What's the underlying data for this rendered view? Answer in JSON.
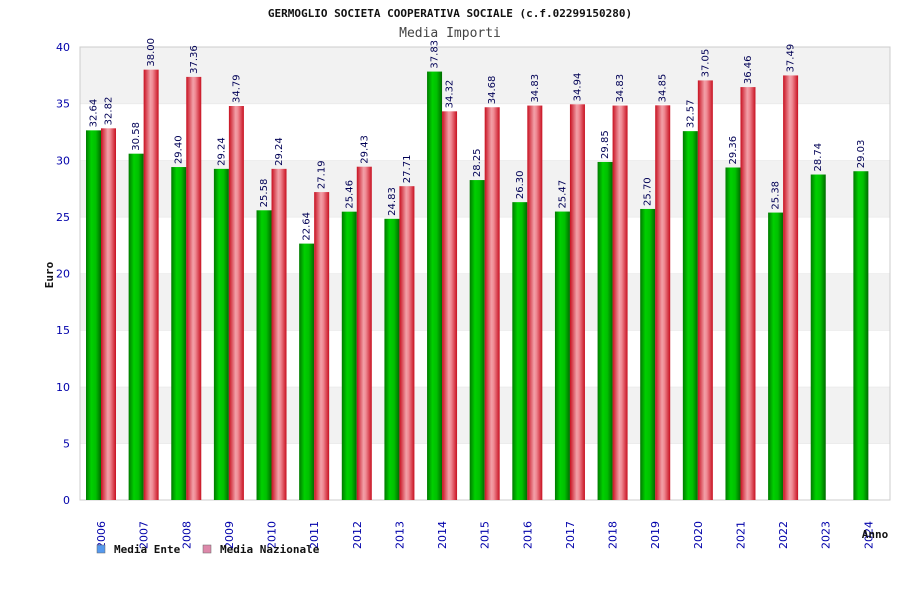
{
  "chart_data": {
    "type": "bar",
    "title": "GERMOGLIO SOCIETA COOPERATIVA SOCIALE (c.f.02299150280)",
    "subtitle": "Media Importi",
    "xlabel": "Anno",
    "ylabel": "Euro",
    "ylim": [
      0,
      40
    ],
    "yticks": [
      0,
      5,
      10,
      15,
      20,
      25,
      30,
      35,
      40
    ],
    "grid": true,
    "legend_position": "bottom-left",
    "categories": [
      "2006",
      "2007",
      "2008",
      "2009",
      "2010",
      "2011",
      "2012",
      "2013",
      "2014",
      "2015",
      "2016",
      "2017",
      "2018",
      "2019",
      "2020",
      "2021",
      "2022",
      "2023",
      "2024"
    ],
    "series": [
      {
        "name": "Media Ente",
        "color": "#00aa00",
        "legend_color": "#5599ee",
        "values": [
          32.64,
          30.58,
          29.4,
          29.24,
          25.58,
          22.64,
          25.46,
          24.83,
          37.83,
          28.25,
          26.3,
          25.47,
          29.85,
          25.7,
          32.57,
          29.36,
          25.38,
          28.74,
          29.03
        ],
        "labels": [
          "32.64",
          "30.58",
          "29.40",
          "29.24",
          "25.58",
          "22.64",
          "25.46",
          "24.83",
          "37.83",
          "28.25",
          "26.30",
          "25.47",
          "29.85",
          "25.70",
          "32.57",
          "29.36",
          "25.38",
          "28.74",
          "29.03"
        ]
      },
      {
        "name": "Media Nazionale",
        "color": "#ee2222",
        "legend_color": "#dd88aa",
        "values": [
          32.82,
          38.0,
          37.36,
          34.79,
          29.24,
          27.19,
          29.43,
          27.71,
          34.32,
          34.68,
          34.83,
          34.94,
          34.83,
          34.85,
          37.05,
          36.46,
          37.49,
          null,
          null
        ],
        "labels": [
          "32.82",
          "38.00",
          "37.36",
          "34.79",
          "29.24",
          "27.19",
          "29.43",
          "27.71",
          "34.32",
          "34.68",
          "34.83",
          "34.94",
          "34.83",
          "34.85",
          "37.05",
          "36.46",
          "37.49",
          null,
          null
        ]
      }
    ]
  }
}
